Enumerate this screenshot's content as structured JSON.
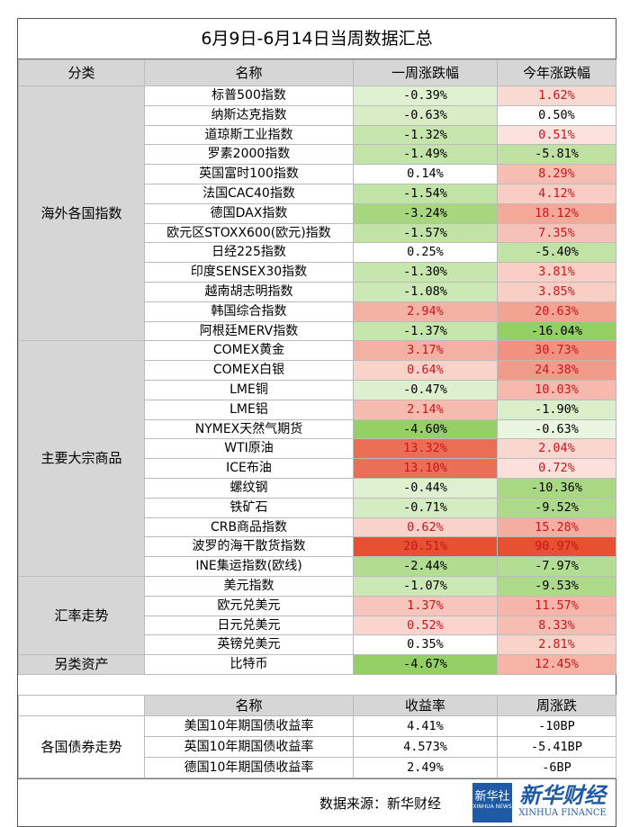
{
  "title": "6月9日-6月14日当周数据汇总",
  "header": [
    "分类",
    "名称",
    "一周涨跌幅",
    "今年涨跌幅"
  ],
  "groups": [
    {
      "name": "海外各国指数",
      "rows": [
        [
          "标普500指数",
          "-0.39%",
          "1.62%"
        ],
        [
          "纳斯达克指数",
          "-0.63%",
          "0.50%"
        ],
        [
          "道琼斯工业指数",
          "-1.32%",
          "0.51%"
        ],
        [
          "罗素2000指数",
          "-1.49%",
          "-5.81%"
        ],
        [
          "英国富时100指数",
          "0.14%",
          "8.29%"
        ],
        [
          "法国CAC40指数",
          "-1.54%",
          "4.12%"
        ],
        [
          "德国DAX指数",
          "-3.24%",
          "18.12%"
        ],
        [
          "欧元区STOXX600(欧元)指数",
          "-1.57%",
          "7.35%"
        ],
        [
          "日经225指数",
          "0.25%",
          "-5.40%"
        ],
        [
          "印度SENSEX30指数",
          "-1.30%",
          "3.81%"
        ],
        [
          "越南胡志明指数",
          "-1.08%",
          "3.85%"
        ],
        [
          "韩国综合指数",
          "2.94%",
          "20.63%"
        ],
        [
          "阿根廷MERV指数",
          "-1.37%",
          "-16.04%"
        ]
      ]
    },
    {
      "name": "主要大宗商品",
      "rows": [
        [
          "COMEX黄金",
          "3.17%",
          "30.73%"
        ],
        [
          "COMEX白银",
          "0.64%",
          "24.38%"
        ],
        [
          "LME铜",
          "-0.47%",
          "10.03%"
        ],
        [
          "LME铝",
          "2.14%",
          "-1.90%"
        ],
        [
          "NYMEX天然气期货",
          "-4.60%",
          "-0.63%"
        ],
        [
          "WTI原油",
          "13.32%",
          "2.04%"
        ],
        [
          "ICE布油",
          "13.10%",
          "0.72%"
        ],
        [
          "螺纹钢",
          "-0.44%",
          "-10.36%"
        ],
        [
          "铁矿石",
          "-0.71%",
          "-9.52%"
        ],
        [
          "CRB商品指数",
          "0.62%",
          "15.28%"
        ],
        [
          "波罗的海干散货指数",
          "20.51%",
          "90.97%"
        ],
        [
          "INE集运指数(欧线)",
          "-2.44%",
          "-7.97%"
        ]
      ]
    },
    {
      "name": "汇率走势",
      "rows": [
        [
          "美元指数",
          "-1.07%",
          "-9.53%"
        ],
        [
          "欧元兑美元",
          "1.37%",
          "11.57%"
        ],
        [
          "日元兑美元",
          "0.52%",
          "8.33%"
        ],
        [
          "英镑兑美元",
          "0.35%",
          "2.81%"
        ]
      ]
    },
    {
      "name": "另类资产",
      "rows": [
        [
          "比特币",
          "-4.67%",
          "12.45%"
        ]
      ]
    }
  ],
  "bond_header": [
    "名称",
    "收益率",
    "周涨跌"
  ],
  "bond_group": "各国债券走势",
  "bond_rows": [
    [
      "美国10年期国债收益率",
      "4.41%",
      "-10BP"
    ],
    [
      "英国10年期国债收益率",
      "4.573%",
      "-5.41BP"
    ],
    [
      "德国10年期国债收益率",
      "2.49%",
      "-6BP"
    ]
  ],
  "source": "数据来源：新华财经",
  "logo": [
    "新华社",
    "XINHUA NEWS",
    "新华财经",
    "XINHUA FINANCE"
  ]
}
